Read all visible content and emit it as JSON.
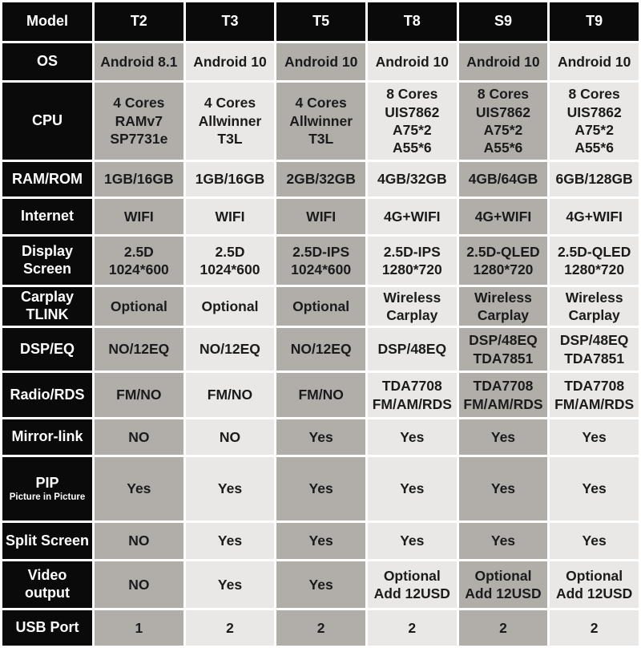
{
  "chart_data": {
    "type": "table",
    "corner_label": "Model",
    "columns": [
      "T2",
      "T3",
      "T5",
      "T8",
      "S9",
      "T9"
    ],
    "rows": [
      {
        "label": "OS",
        "cells": [
          "Android 8.1",
          "Android 10",
          "Android 10",
          "Android 10",
          "Android 10",
          "Android 10"
        ]
      },
      {
        "label": "CPU",
        "cells": [
          "4 Cores\nRAMv7\nSP7731e",
          "4 Cores\nAllwinner\nT3L",
          "4 Cores\nAllwinner\nT3L",
          "8 Cores\nUIS7862\nA75*2\nA55*6",
          "8 Cores\nUIS7862\nA75*2\nA55*6",
          "8 Cores\nUIS7862\nA75*2\nA55*6"
        ]
      },
      {
        "label": "RAM/ROM",
        "cells": [
          "1GB/16GB",
          "1GB/16GB",
          "2GB/32GB",
          "4GB/32GB",
          "4GB/64GB",
          "6GB/128GB"
        ]
      },
      {
        "label": "Internet",
        "cells": [
          "WIFI",
          "WIFI",
          "WIFI",
          "4G+WIFI",
          "4G+WIFI",
          "4G+WIFI"
        ]
      },
      {
        "label": "Display\nScreen",
        "cells": [
          "2.5D\n1024*600",
          "2.5D\n1024*600",
          "2.5D-IPS\n1024*600",
          "2.5D-IPS\n1280*720",
          "2.5D-QLED\n1280*720",
          "2.5D-QLED\n1280*720"
        ]
      },
      {
        "label": "Carplay\nTLINK",
        "cells": [
          "Optional",
          "Optional",
          "Optional",
          "Wireless\nCarplay",
          "Wireless\nCarplay",
          "Wireless\nCarplay"
        ]
      },
      {
        "label": "DSP/EQ",
        "cells": [
          "NO/12EQ",
          "NO/12EQ",
          "NO/12EQ",
          "DSP/48EQ",
          "DSP/48EQ\nTDA7851",
          "DSP/48EQ\nTDA7851"
        ]
      },
      {
        "label": "Radio/RDS",
        "cells": [
          "FM/NO",
          "FM/NO",
          "FM/NO",
          "TDA7708\nFM/AM/RDS",
          "TDA7708\nFM/AM/RDS",
          "TDA7708\nFM/AM/RDS"
        ]
      },
      {
        "label": "Mirror-link",
        "cells": [
          "NO",
          "NO",
          "Yes",
          "Yes",
          "Yes",
          "Yes"
        ]
      },
      {
        "label": "PIP",
        "sublabel": "Picture in Picture",
        "cells": [
          "Yes",
          "Yes",
          "Yes",
          "Yes",
          "Yes",
          "Yes"
        ]
      },
      {
        "label": "Split Screen",
        "cells": [
          "NO",
          "Yes",
          "Yes",
          "Yes",
          "Yes",
          "Yes"
        ]
      },
      {
        "label": "Video\noutput",
        "cells": [
          "NO",
          "Yes",
          "Yes",
          "Optional\nAdd 12USD",
          "Optional\nAdd 12USD",
          "Optional\nAdd 12USD"
        ]
      },
      {
        "label": "USB Port",
        "cells": [
          "1",
          "2",
          "2",
          "2",
          "2",
          "2"
        ]
      }
    ]
  },
  "colors": {
    "header_bg": "#0a0a0a",
    "header_text": "#ffffff",
    "cell_gray": "#b1aeaa",
    "cell_light": "#e9e8e6",
    "cell_text": "#1b1b1b",
    "background": "#ffffff"
  }
}
